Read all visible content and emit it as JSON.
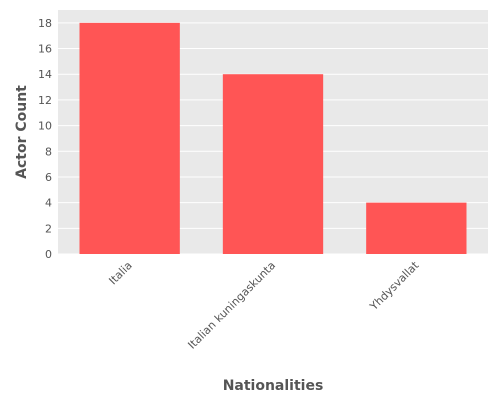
{
  "chart_data": {
    "type": "bar",
    "title": "",
    "xlabel": "Nationalities",
    "ylabel": "Actor Count",
    "categories": [
      "Italia",
      "Italian kuningaskunta",
      "Yhdysvallat"
    ],
    "values": [
      18,
      14,
      4
    ],
    "ylim": [
      0,
      19
    ],
    "yticks": [
      0,
      2,
      4,
      6,
      8,
      10,
      12,
      14,
      16,
      18
    ],
    "grid": true,
    "legend": "none",
    "colors": {
      "bar": "#ff5555",
      "plot_background": "#e9e9e9",
      "grid": "#ffffff",
      "text": "#555555"
    }
  }
}
